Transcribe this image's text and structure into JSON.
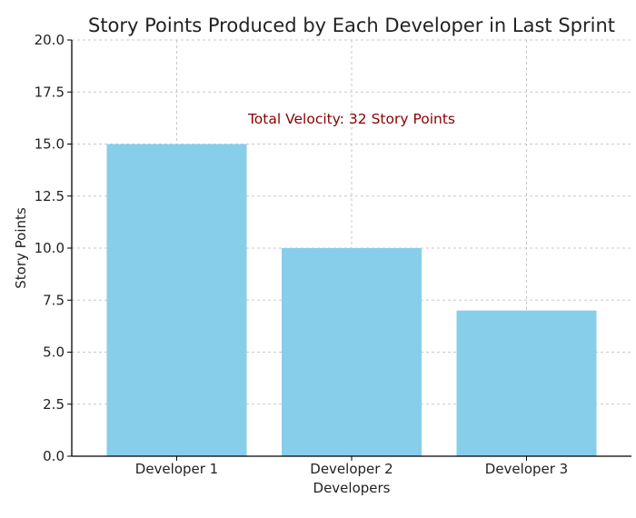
{
  "chart_data": {
    "type": "bar",
    "title": "Story Points Produced by Each Developer in Last Sprint",
    "xlabel": "Developers",
    "ylabel": "Story Points",
    "categories": [
      "Developer 1",
      "Developer 2",
      "Developer 3"
    ],
    "values": [
      15,
      10,
      7
    ],
    "ylim": [
      0,
      20
    ],
    "yticks": [
      "0.0",
      "2.5",
      "5.0",
      "7.5",
      "10.0",
      "12.5",
      "15.0",
      "17.5",
      "20.0"
    ],
    "grid": true,
    "bar_color": "#87ceeb",
    "annotation": {
      "text": "Total Velocity: 32 Story Points",
      "x": 1,
      "y": 16.2,
      "color": "#8b0000"
    }
  }
}
